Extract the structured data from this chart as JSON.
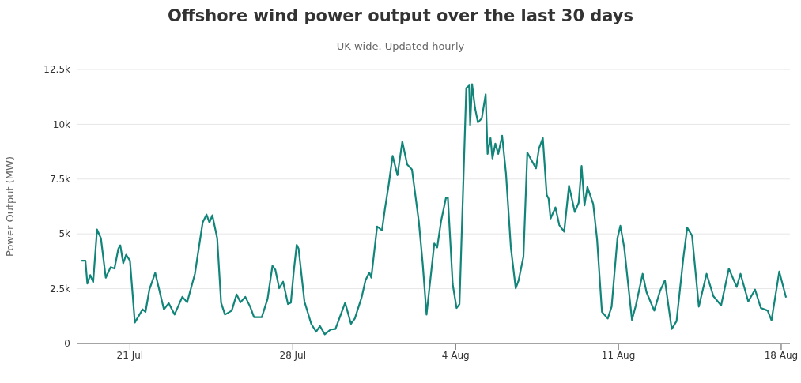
{
  "chart_data": {
    "type": "line",
    "title": "Offshore wind power output over the last 30 days",
    "subtitle": "UK wide. Updated hourly",
    "ylabel": "Power Output (MW)",
    "x": [
      "--07-18T22:00",
      "--07-19T02:00",
      "--07-19T04:00",
      "--07-19T07:00",
      "--07-19T10:00",
      "--07-19T14:00",
      "--07-19T18:00",
      "--07-19T23:00",
      "--07-20T04:00",
      "--07-20T08:00",
      "--07-20T12:00",
      "--07-20T14:00",
      "--07-20T17:00",
      "--07-20T20:00",
      "--07-21T00:00",
      "--07-21T05:00",
      "--07-21T13:00",
      "--07-21T16:00",
      "--07-21T20:00",
      "--07-22T02:00",
      "--07-22T11:00",
      "--07-22T16:00",
      "--07-22T22:00",
      "--07-23T06:00",
      "--07-23T11:00",
      "--07-23T19:00",
      "--07-24T03:00",
      "--07-24T07:00",
      "--07-24T10:00",
      "--07-24T13:00",
      "--07-24T18:00",
      "--07-24T22:00",
      "--07-25T02:00",
      "--07-25T09:00",
      "--07-25T14:00",
      "--07-25T18:00",
      "--07-25T23:00",
      "--07-26T04:00",
      "--07-26T08:00",
      "--07-26T16:00",
      "--07-26T22:00",
      "--07-27T03:00",
      "--07-27T06:00",
      "--07-27T10:00",
      "--07-27T14:00",
      "--07-27T19:00",
      "--07-27T22:00",
      "--07-28T01:00",
      "--07-28T04:00",
      "--07-28T06:00",
      "--07-28T12:00",
      "--07-28T19:00",
      "--07-29T00:00",
      "--07-29T04:00",
      "--07-29T09:00",
      "--07-29T15:00",
      "--07-29T20:00",
      "--07-30T06:00",
      "--07-30T12:00",
      "--07-30T16:00",
      "--07-30T23:00",
      "--07-31T03:00",
      "--07-31T07:00",
      "--07-31T09:00",
      "--07-31T15:00",
      "--07-31T20:00",
      "--07-31T23:00",
      "--08-01T03:00",
      "--08-01T07:00",
      "--08-01T12:00",
      "--08-01T17:00",
      "--08-01T22:00",
      "--08-02T03:00",
      "--08-02T10:00",
      "--08-02T14:00",
      "--08-02T18:00",
      "--08-03T02:00",
      "--08-03T05:00",
      "--08-03T09:00",
      "--08-03T14:00",
      "--08-03T16:00",
      "--08-03T21:00",
      "--08-04T01:00",
      "--08-04T04:00",
      "--08-04T11:00",
      "--08-04T14:00",
      "--08-04T15:00",
      "--08-04T17:00",
      "--08-04T20:00",
      "--08-04T23:00",
      "--08-05T03:00",
      "--08-05T07:00",
      "--08-05T09:00",
      "--08-05T12:00",
      "--08-05T14:00",
      "--08-05T17:00",
      "--08-05T20:00",
      "--08-06T00:00",
      "--08-06T04:00",
      "--08-06T09:00",
      "--08-06T14:00",
      "--08-06T17:00",
      "--08-06T22:00",
      "--08-07T02:00",
      "--08-07T08:00",
      "--08-07T11:00",
      "--08-07T14:00",
      "--08-07T18:00",
      "--08-07T22:00",
      "--08-08T00:00",
      "--08-08T02:00",
      "--08-08T07:00",
      "--08-08T11:00",
      "--08-08T16:00",
      "--08-08T21:00",
      "--08-09T03:00",
      "--08-09T07:00",
      "--08-09T10:00",
      "--08-09T13:00",
      "--08-09T16:00",
      "--08-09T22:00",
      "--08-10T02:00",
      "--08-10T07:00",
      "--08-10T13:00",
      "--08-10T17:00",
      "--08-10T23:00",
      "--08-11T02:00",
      "--08-11T06:00",
      "--08-11T14:00",
      "--08-11T18:00",
      "--08-12T01:00",
      "--08-12T05:00",
      "--08-12T13:00",
      "--08-12T19:00",
      "--08-13T00:00",
      "--08-13T07:00",
      "--08-13T12:00",
      "--08-13T19:00",
      "--08-13T23:00",
      "--08-14T04:00",
      "--08-14T11:00",
      "--08-14T19:00",
      "--08-15T02:00",
      "--08-15T10:00",
      "--08-15T18:00",
      "--08-16T02:00",
      "--08-16T06:00",
      "--08-16T14:00",
      "--08-16T21:00",
      "--08-17T03:00",
      "--08-17T10:00",
      "--08-17T14:00",
      "--08-17T22:00",
      "--08-18T05:00"
    ],
    "series": [
      {
        "color": "#12857a",
        "values": [
          3780,
          3780,
          2730,
          3120,
          2800,
          5200,
          4800,
          3000,
          3480,
          3420,
          4320,
          4480,
          3660,
          4050,
          3780,
          960,
          1560,
          1440,
          2460,
          3220,
          1560,
          1840,
          1320,
          2130,
          1880,
          3180,
          5520,
          5880,
          5520,
          5850,
          4800,
          1860,
          1320,
          1500,
          2240,
          1880,
          2130,
          1680,
          1200,
          1200,
          2040,
          3540,
          3360,
          2520,
          2820,
          1800,
          1860,
          3300,
          4500,
          4320,
          1920,
          900,
          540,
          800,
          420,
          640,
          660,
          1860,
          900,
          1140,
          2100,
          2880,
          3240,
          3000,
          5340,
          5160,
          6120,
          7260,
          8560,
          7680,
          9210,
          8170,
          7930,
          5580,
          3660,
          1320,
          4560,
          4380,
          5580,
          6640,
          6660,
          2700,
          1620,
          1800,
          11650,
          11770,
          9970,
          11830,
          10750,
          10090,
          10270,
          11370,
          8650,
          9370,
          8440,
          9120,
          8650,
          9480,
          7750,
          4380,
          2520,
          2880,
          3960,
          8710,
          8220,
          7990,
          8890,
          9370,
          6780,
          6600,
          5700,
          6210,
          5400,
          5100,
          7200,
          6000,
          6420,
          8100,
          6300,
          7140,
          6360,
          4740,
          1440,
          1140,
          1680,
          4800,
          5370,
          4380,
          1080,
          1740,
          3180,
          2340,
          1500,
          2400,
          2880,
          660,
          1020,
          3900,
          5280,
          4920,
          1680,
          3180,
          2160,
          1740,
          3420,
          2580,
          3180,
          1920,
          2460,
          1620,
          1500,
          1060,
          3280,
          2100
        ]
      }
    ],
    "xlim": [
      "--07-18T17:00",
      "--08-18T09:00"
    ],
    "xticks": [
      {
        "value": "--07-21",
        "label": "21 Jul"
      },
      {
        "value": "--07-28",
        "label": "28 Jul"
      },
      {
        "value": "--08-04",
        "label": "4 Aug"
      },
      {
        "value": "--08-11",
        "label": "11 Aug"
      },
      {
        "value": "--08-18",
        "label": "18 Aug"
      }
    ],
    "ylim": [
      0,
      12500
    ],
    "yticks": [
      0,
      {
        "value": 2500,
        "label": "2.5k"
      },
      {
        "value": 5000,
        "label": "5k"
      },
      {
        "value": 7500,
        "label": "7.5k"
      },
      {
        "value": 10000,
        "label": "10k"
      },
      {
        "value": 12500,
        "label": "12.5k"
      }
    ],
    "grid": "y",
    "legend": false
  }
}
